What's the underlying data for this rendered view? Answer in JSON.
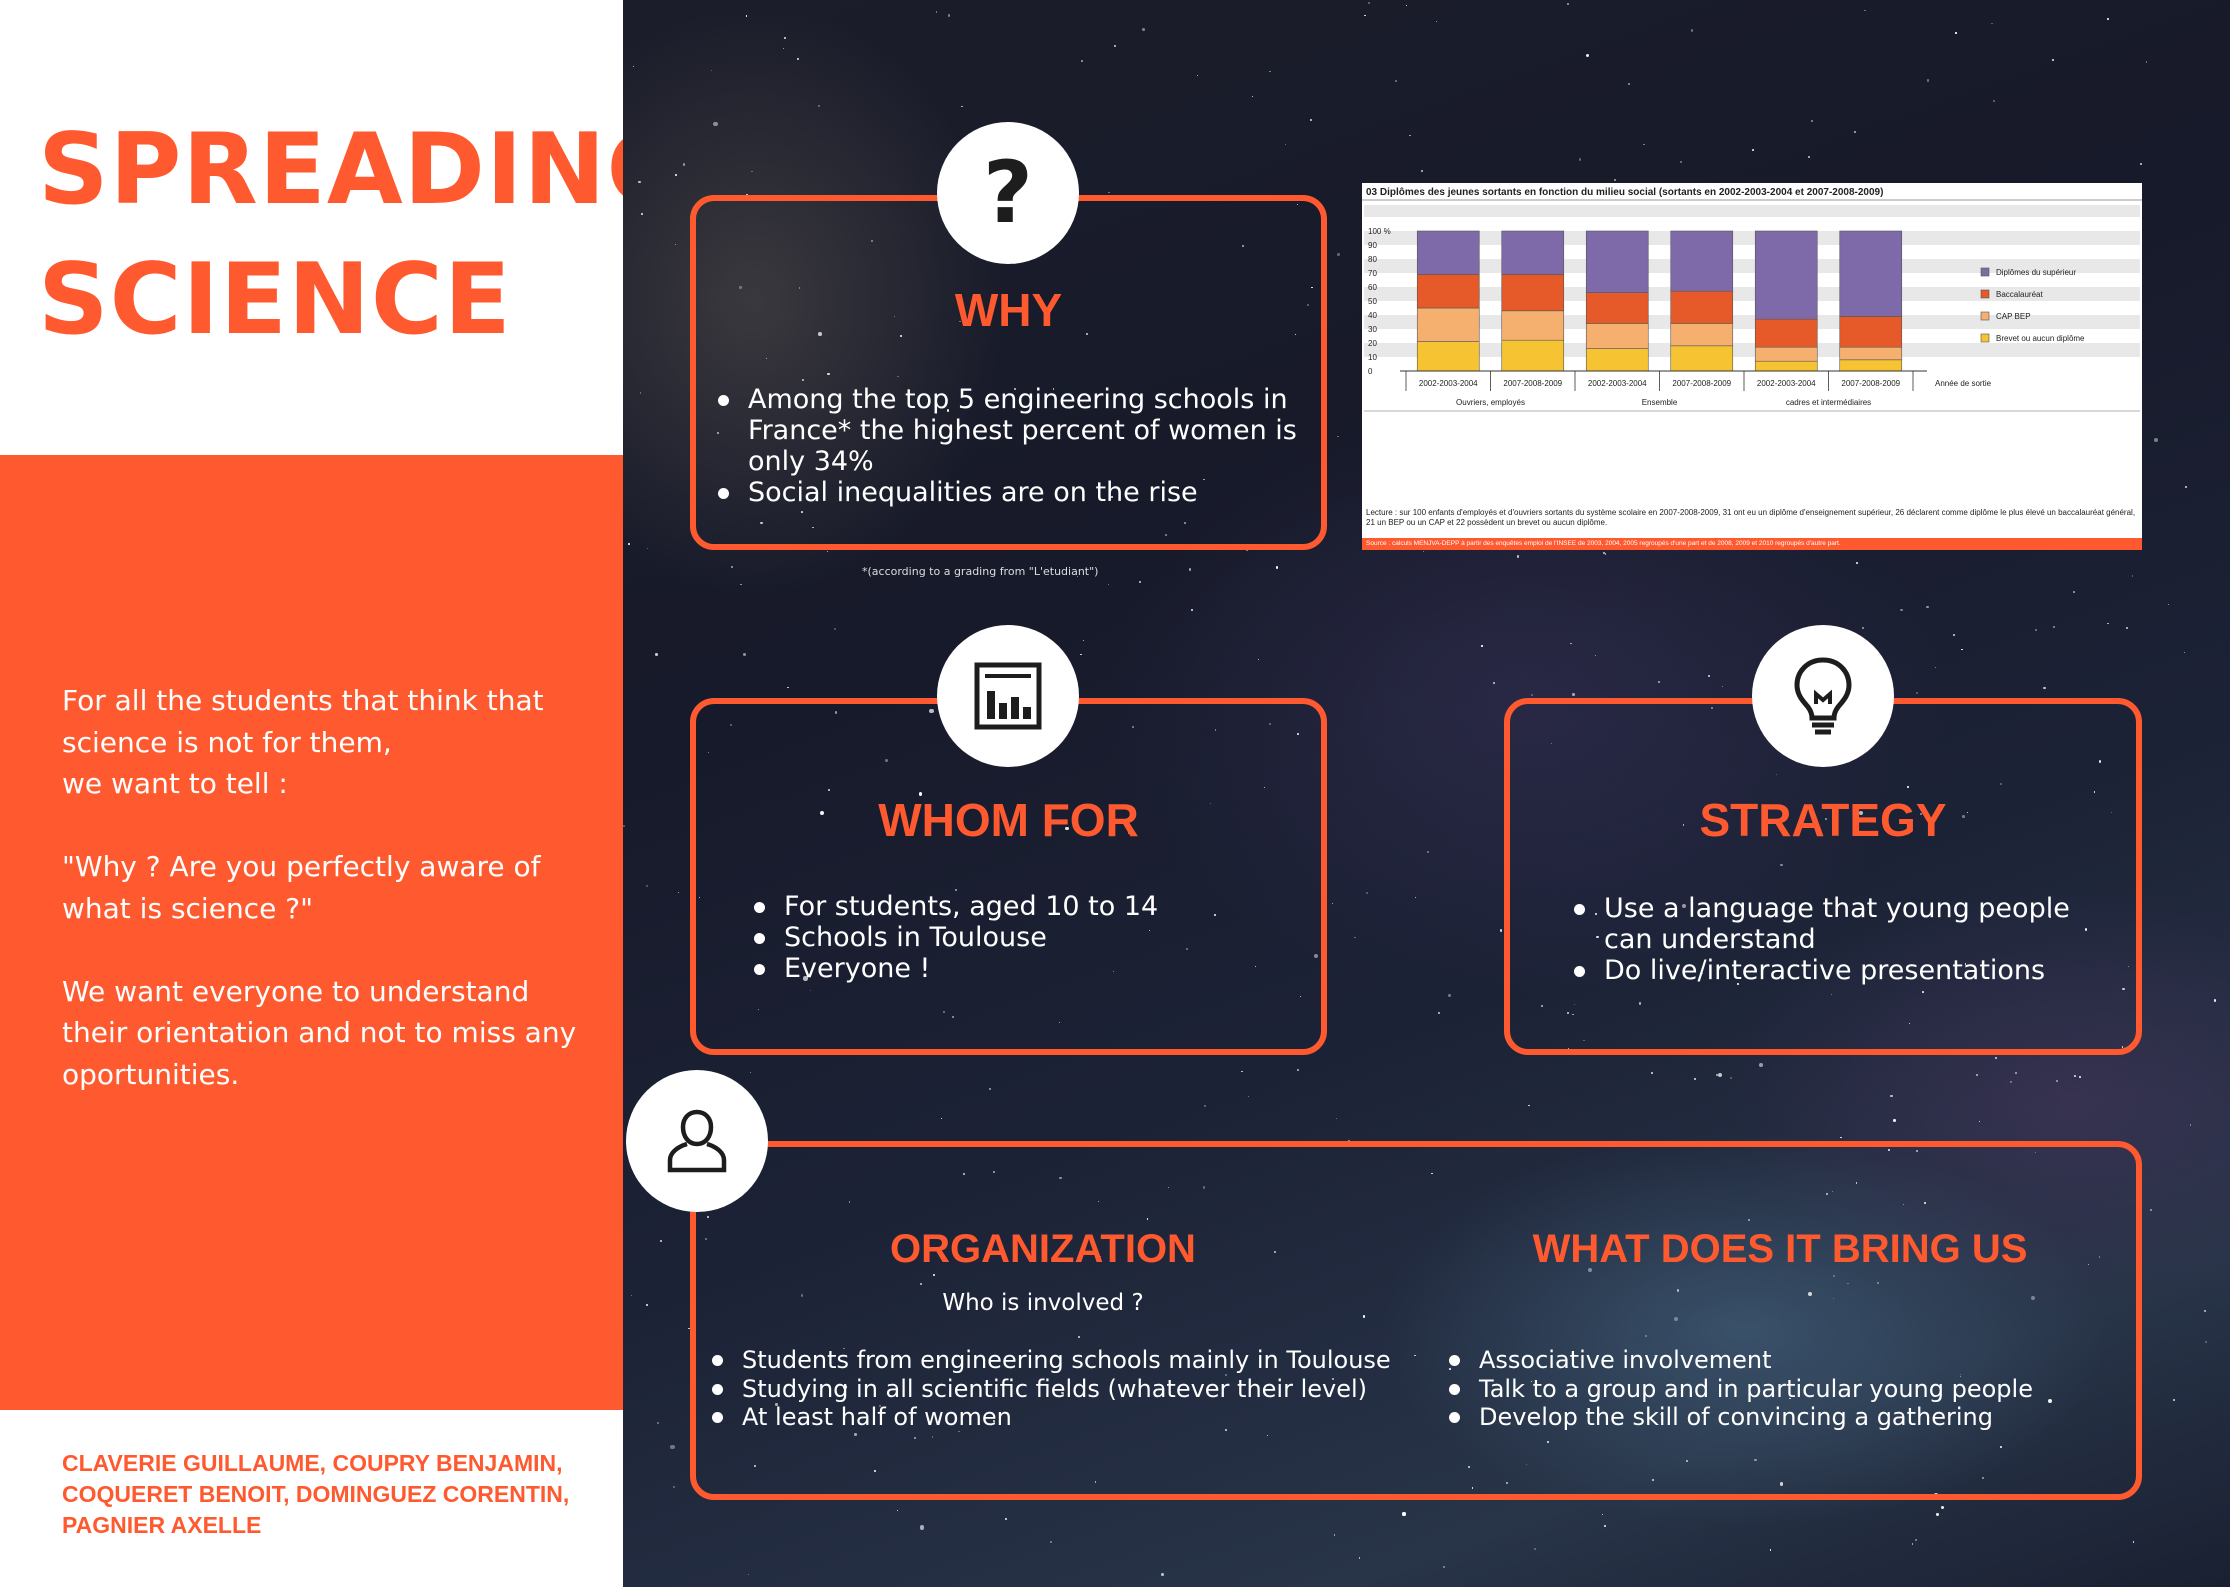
{
  "title": {
    "line1": "SPREADING",
    "line2": "SCIENCE"
  },
  "intro": {
    "p1_line1": "For all the students that think that",
    "p1_line2": "science is not for them,",
    "p1_line3": "we want to tell :",
    "p2_line1": "\"Why ? Are you perfectly aware of",
    "p2_line2": "what is science ?\"",
    "p3_line1": "We want everyone to understand",
    "p3_line2": "their orientation and not to miss any",
    "p3_line3": "oportunities."
  },
  "authors": {
    "line1": "CLAVERIE GUILLAUME, COUPRY BENJAMIN,",
    "line2": "COQUERET BENOIT, DOMINGUEZ CORENTIN,",
    "line3": "PAGNIER AXELLE"
  },
  "why": {
    "heading": "WHY",
    "icon": "question-mark",
    "bullets": [
      "Among the top 5  engineering schools in France* the highest percent of women is only 34%",
      "Social inequalities are on the rise"
    ],
    "footnote": "*(according to a grading from \"L'etudiant\")"
  },
  "whom_for": {
    "heading": "WHOM FOR",
    "icon": "bar-chart",
    "bullets": [
      "For students, aged 10 to 14",
      "Schools in Toulouse",
      "Everyone !"
    ]
  },
  "strategy": {
    "heading": "STRATEGY",
    "icon": "lightbulb",
    "bullets": [
      "Use a language that young people can understand",
      "Do live/interactive presentations"
    ]
  },
  "organization": {
    "heading": "ORGANIZATION",
    "icon": "person",
    "subheading": "Who is involved ?",
    "bullets": [
      "Students from engineering schools mainly in Toulouse",
      "Studying in all scientific fields (whatever their level)",
      "At least half of women"
    ]
  },
  "benefits": {
    "heading": "WHAT DOES IT BRING US",
    "bullets": [
      "Associative involvement",
      "Talk to a group and in particular young people",
      "Develop the skill of convincing a gathering"
    ]
  },
  "colors": {
    "accent": "#ff5a2f",
    "diplome_sup": "#7e6aa8",
    "bac": "#e65a2a",
    "cap_bep": "#f5b070",
    "brevet": "#f6c432"
  },
  "chart_data": {
    "type": "bar",
    "stacked": true,
    "title": "03  Diplômes des jeunes sortants en fonction du milieu social (sortants en 2002-2003-2004 et 2007-2008-2009)",
    "ylabel": "",
    "ylim": [
      0,
      100
    ],
    "y_ticks": [
      "100 %",
      "90",
      "80",
      "70",
      "60",
      "50",
      "40",
      "30",
      "20",
      "10",
      "0"
    ],
    "categories": [
      "2002-2003-2004",
      "2007-2008-2009",
      "2002-2003-2004",
      "2007-2008-2009",
      "2002-2003-2004",
      "2007-2008-2009"
    ],
    "groups": [
      "Ouvriers, employés",
      "Ensemble",
      "cadres et intermédiaires"
    ],
    "x_axis_title": "Année de sortie",
    "series": [
      {
        "name": "Brevet ou aucun diplôme",
        "color": "#f6c432",
        "values": [
          21,
          22,
          16,
          18,
          7,
          8
        ]
      },
      {
        "name": "CAP BEP",
        "color": "#f5b070",
        "values": [
          24,
          21,
          18,
          16,
          10,
          9
        ]
      },
      {
        "name": "Baccalauréat",
        "color": "#e65a2a",
        "values": [
          24,
          26,
          22,
          23,
          20,
          22
        ]
      },
      {
        "name": "Diplômes du supérieur",
        "color": "#7e6aa8",
        "values": [
          31,
          31,
          44,
          43,
          63,
          61
        ]
      }
    ],
    "legend_order": [
      "Diplômes du supérieur",
      "Baccalauréat",
      "CAP BEP",
      "Brevet ou aucun diplôme"
    ],
    "legend_position": "right",
    "lecture": "Lecture : sur 100 enfants d'employés et d'ouvriers sortants du système scolaire en 2007-2008-2009, 31 ont eu un diplôme d'enseignement supérieur, 26 déclarent comme diplôme le plus élevé un baccalauréat général, 21 un BEP ou un CAP et 22 possèdent un brevet ou aucun diplôme.",
    "source": "Source : calculs MENJVA-DEPP à partir des enquêtes emploi de l'INSEE de 2003, 2004, 2005 regroupés d'une part et de 2008, 2009 et 2010 regroupés d'autre part."
  }
}
